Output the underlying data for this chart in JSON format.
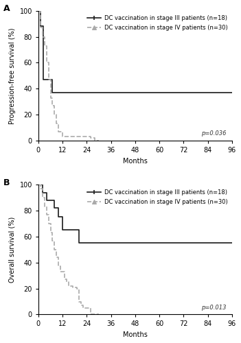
{
  "panel_A": {
    "label": "A",
    "ylabel": "Progression-free survival (%)",
    "xlabel": "Months",
    "pvalue": "p=0.036",
    "xlim": [
      0,
      96
    ],
    "ylim": [
      0,
      100
    ],
    "xticks": [
      0,
      12,
      24,
      36,
      48,
      60,
      72,
      84,
      96
    ],
    "yticks": [
      0,
      20,
      40,
      60,
      80,
      100
    ],
    "stage3_color": "#1a1a1a",
    "stage4_color": "#aaaaaa",
    "stage3_label": "DC vaccination in stage III patients (n=18)",
    "stage4_label": "DC vaccination in stage IV patients (n=30)",
    "stage3_x": [
      0,
      0.5,
      1,
      1.5,
      2,
      2.5,
      3,
      4,
      5,
      6,
      7,
      8,
      9,
      10,
      84,
      84,
      96
    ],
    "stage3_y": [
      100,
      100,
      88,
      88,
      88,
      47,
      47,
      47,
      47,
      47,
      37,
      37,
      37,
      37,
      37,
      37,
      37
    ],
    "stage4_x": [
      0,
      1,
      2,
      3,
      4,
      5,
      6,
      7,
      8,
      9,
      10,
      11,
      12,
      14,
      16,
      18,
      20,
      22,
      24,
      26,
      28,
      30
    ],
    "stage4_y": [
      100,
      87,
      80,
      73,
      60,
      47,
      33,
      27,
      20,
      13,
      7,
      7,
      3,
      3,
      3,
      3,
      3,
      3,
      3,
      2,
      0,
      0
    ]
  },
  "panel_B": {
    "label": "B",
    "ylabel": "Overall survival (%)",
    "xlabel": "Months",
    "pvalue": "p=0.013",
    "xlim": [
      0,
      96
    ],
    "ylim": [
      0,
      100
    ],
    "xticks": [
      0,
      12,
      24,
      36,
      48,
      60,
      72,
      84,
      96
    ],
    "yticks": [
      0,
      20,
      40,
      60,
      80,
      100
    ],
    "stage3_color": "#1a1a1a",
    "stage4_color": "#aaaaaa",
    "stage3_label": "DC vaccination in stage III patients (n=18)",
    "stage4_label": "DC vaccination in stage IV patients (n=30)",
    "stage3_x": [
      0,
      1,
      2,
      4,
      6,
      8,
      10,
      12,
      14,
      16,
      18,
      20,
      22,
      24,
      84,
      96
    ],
    "stage3_y": [
      100,
      100,
      94,
      88,
      88,
      82,
      75,
      65,
      65,
      65,
      65,
      55,
      55,
      55,
      55,
      55
    ],
    "stage4_x": [
      0,
      1,
      2,
      3,
      4,
      5,
      6,
      7,
      8,
      9,
      10,
      11,
      12,
      13,
      14,
      15,
      16,
      17,
      18,
      19,
      20,
      21,
      22,
      24,
      26,
      28,
      30
    ],
    "stage4_y": [
      100,
      97,
      90,
      83,
      77,
      70,
      63,
      57,
      50,
      44,
      37,
      33,
      33,
      27,
      25,
      22,
      22,
      21,
      21,
      20,
      10,
      7,
      5,
      5,
      0,
      0,
      0
    ]
  },
  "bg_color": "#ffffff",
  "border_color": "#000000",
  "fontsize_label": 7,
  "fontsize_tick": 7,
  "fontsize_legend": 6,
  "fontsize_pvalue": 6,
  "fontsize_panel_label": 9
}
